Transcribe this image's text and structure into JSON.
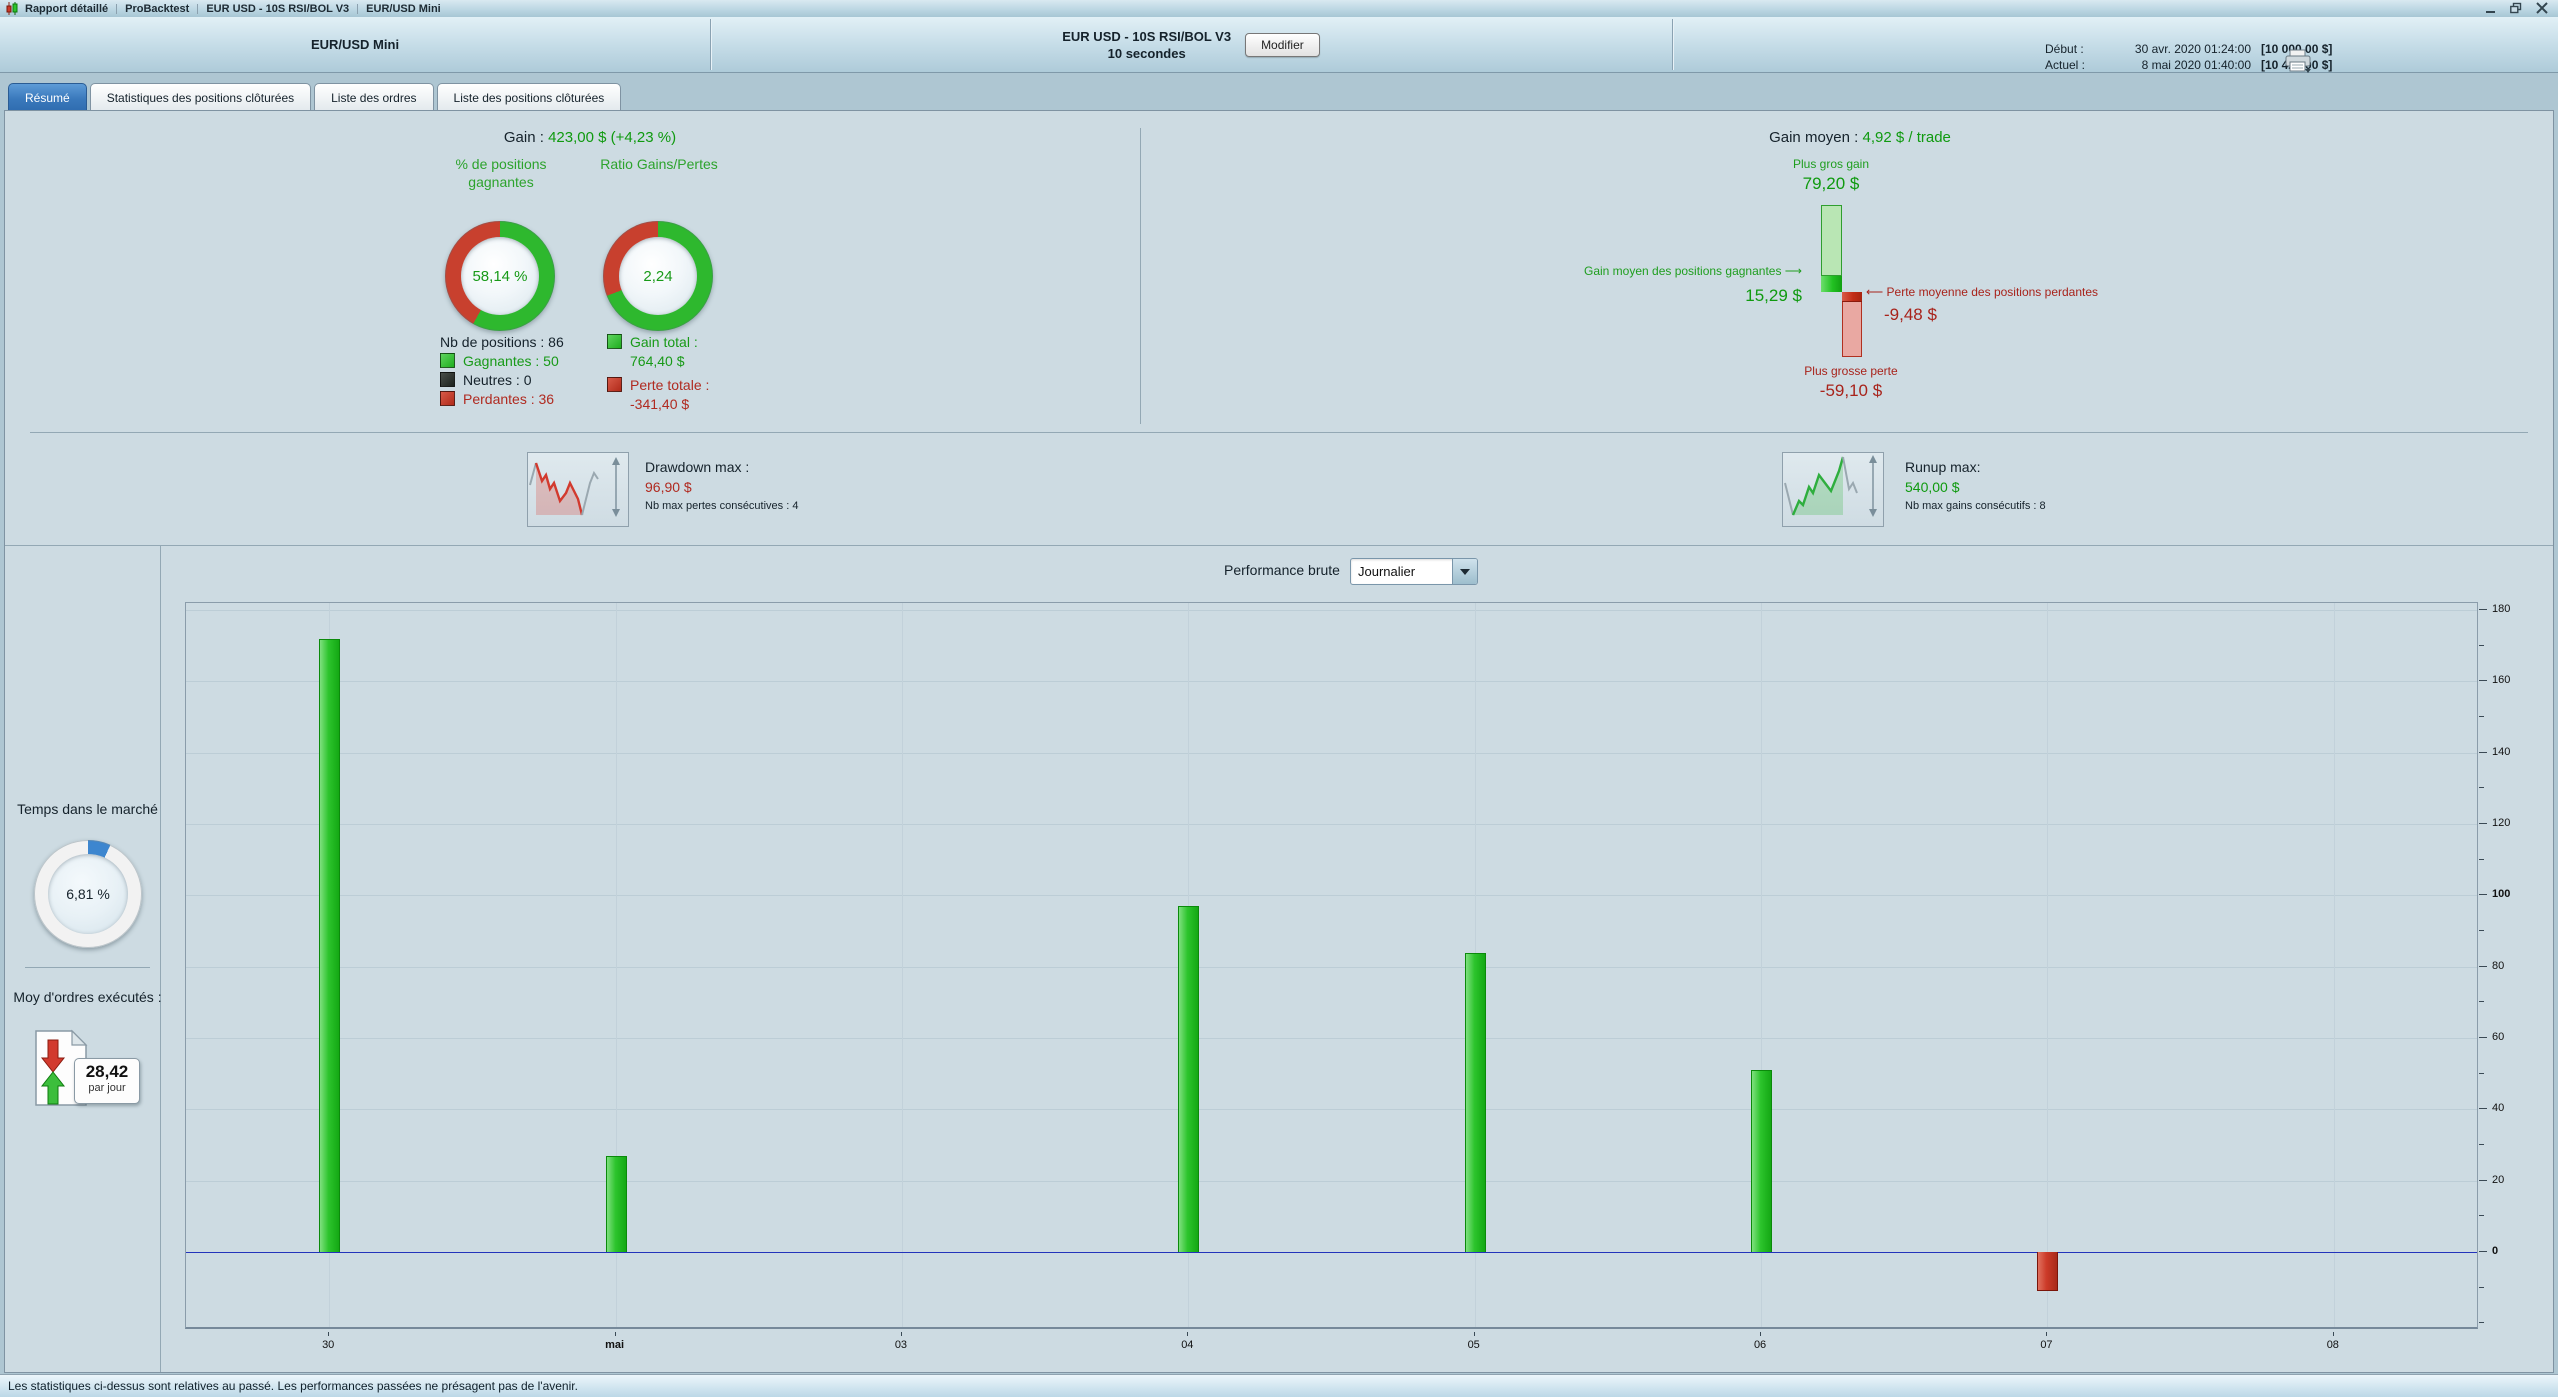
{
  "title_bar": {
    "items": [
      "Rapport détaillé",
      "ProBacktest",
      "EUR USD - 10S RSI/BOL V3",
      "EUR/USD Mini"
    ]
  },
  "header": {
    "instrument": "EUR/USD Mini",
    "strategy_name": "EUR USD - 10S RSI/BOL V3",
    "timeframe": "10 secondes",
    "modify_button": "Modifier",
    "start_label": "Début :",
    "start_date": "30 avr. 2020 01:24:00",
    "start_capital": "[10 000,00 $]",
    "current_label": "Actuel :",
    "current_date": "8 mai 2020 01:40:00",
    "current_capital": "[10 423,00 $]"
  },
  "tabs": [
    {
      "label": "Résumé",
      "active": true
    },
    {
      "label": "Statistiques des positions clôturées",
      "active": false
    },
    {
      "label": "Liste des ordres",
      "active": false
    },
    {
      "label": "Liste des positions clôturées",
      "active": false
    }
  ],
  "summary": {
    "gain_label": "Gain :",
    "gain_value": "423,00 $ (+4,23 %)",
    "winrate_donut": {
      "title": "% de positions gagnantes",
      "value": "58,14 %",
      "green_pct": 58.14,
      "green_color": "#2eb82e",
      "red_color": "#c8402e"
    },
    "ratio_donut": {
      "title": "Ratio Gains/Pertes",
      "value": "2,24",
      "green_pct": 69.1,
      "green_color": "#2eb82e",
      "red_color": "#c8402e"
    },
    "positions": {
      "total": "Nb de positions : 86",
      "winners": "Gagnantes : 50",
      "neutral": "Neutres : 0",
      "losers": "Perdantes : 36"
    },
    "totals": {
      "gain_label": "Gain total :",
      "gain_value": "764,40 $",
      "loss_label": "Perte totale :",
      "loss_value": "-341,40 $"
    }
  },
  "average": {
    "title_label": "Gain moyen :",
    "title_value": "4,92 $ / trade",
    "biggest_gain_label": "Plus gros gain",
    "biggest_gain_value": "79,20 $",
    "biggest_gain_num": 79.2,
    "avg_win_label": "Gain moyen des positions gagnantes",
    "avg_win_value": "15,29 $",
    "avg_win_num": 15.29,
    "avg_loss_label": "Perte moyenne des positions perdantes",
    "avg_loss_value": "-9,48 $",
    "avg_loss_num": -9.48,
    "biggest_loss_label": "Plus grosse perte",
    "biggest_loss_value": "-59,10 $",
    "biggest_loss_num": -59.1
  },
  "drawdown": {
    "label": "Drawdown max :",
    "value": "96,90 $",
    "sub": "Nb max pertes consécutives : 4"
  },
  "runup": {
    "label": "Runup max:",
    "value": "540,00 $",
    "sub": "Nb max gains consécutifs : 8"
  },
  "sidebar": {
    "time_label": "Temps dans le marché",
    "time_value": "6,81 %",
    "time_pct": 6.81,
    "gauge_color": "#3d86cf",
    "orders_label": "Moy d'ordres exécutés :",
    "orders_value": "28,42",
    "orders_unit": "par jour"
  },
  "chart_data": {
    "type": "bar",
    "title": "Performance brute",
    "period_selected": "Journalier",
    "categories": [
      "30",
      "mai",
      "03",
      "04",
      "05",
      "06",
      "07",
      "08"
    ],
    "bold_categories": [
      "mai"
    ],
    "values": [
      172,
      27,
      null,
      97,
      84,
      51,
      -11,
      null
    ],
    "ylim": [
      -21,
      182
    ],
    "yticks": [
      0,
      20,
      40,
      60,
      80,
      100,
      120,
      140,
      160,
      180
    ],
    "bold_yticks": [
      0,
      100
    ],
    "minor_tick_step": 10,
    "grid": true,
    "bar_color_positive": "#2cc42c",
    "bar_color_negative": "#cc3a28",
    "zero_line_color": "#2233bb"
  },
  "status_bar": "Les statistiques ci-dessus sont relatives au passé. Les performances passées ne présagent pas de l'avenir."
}
